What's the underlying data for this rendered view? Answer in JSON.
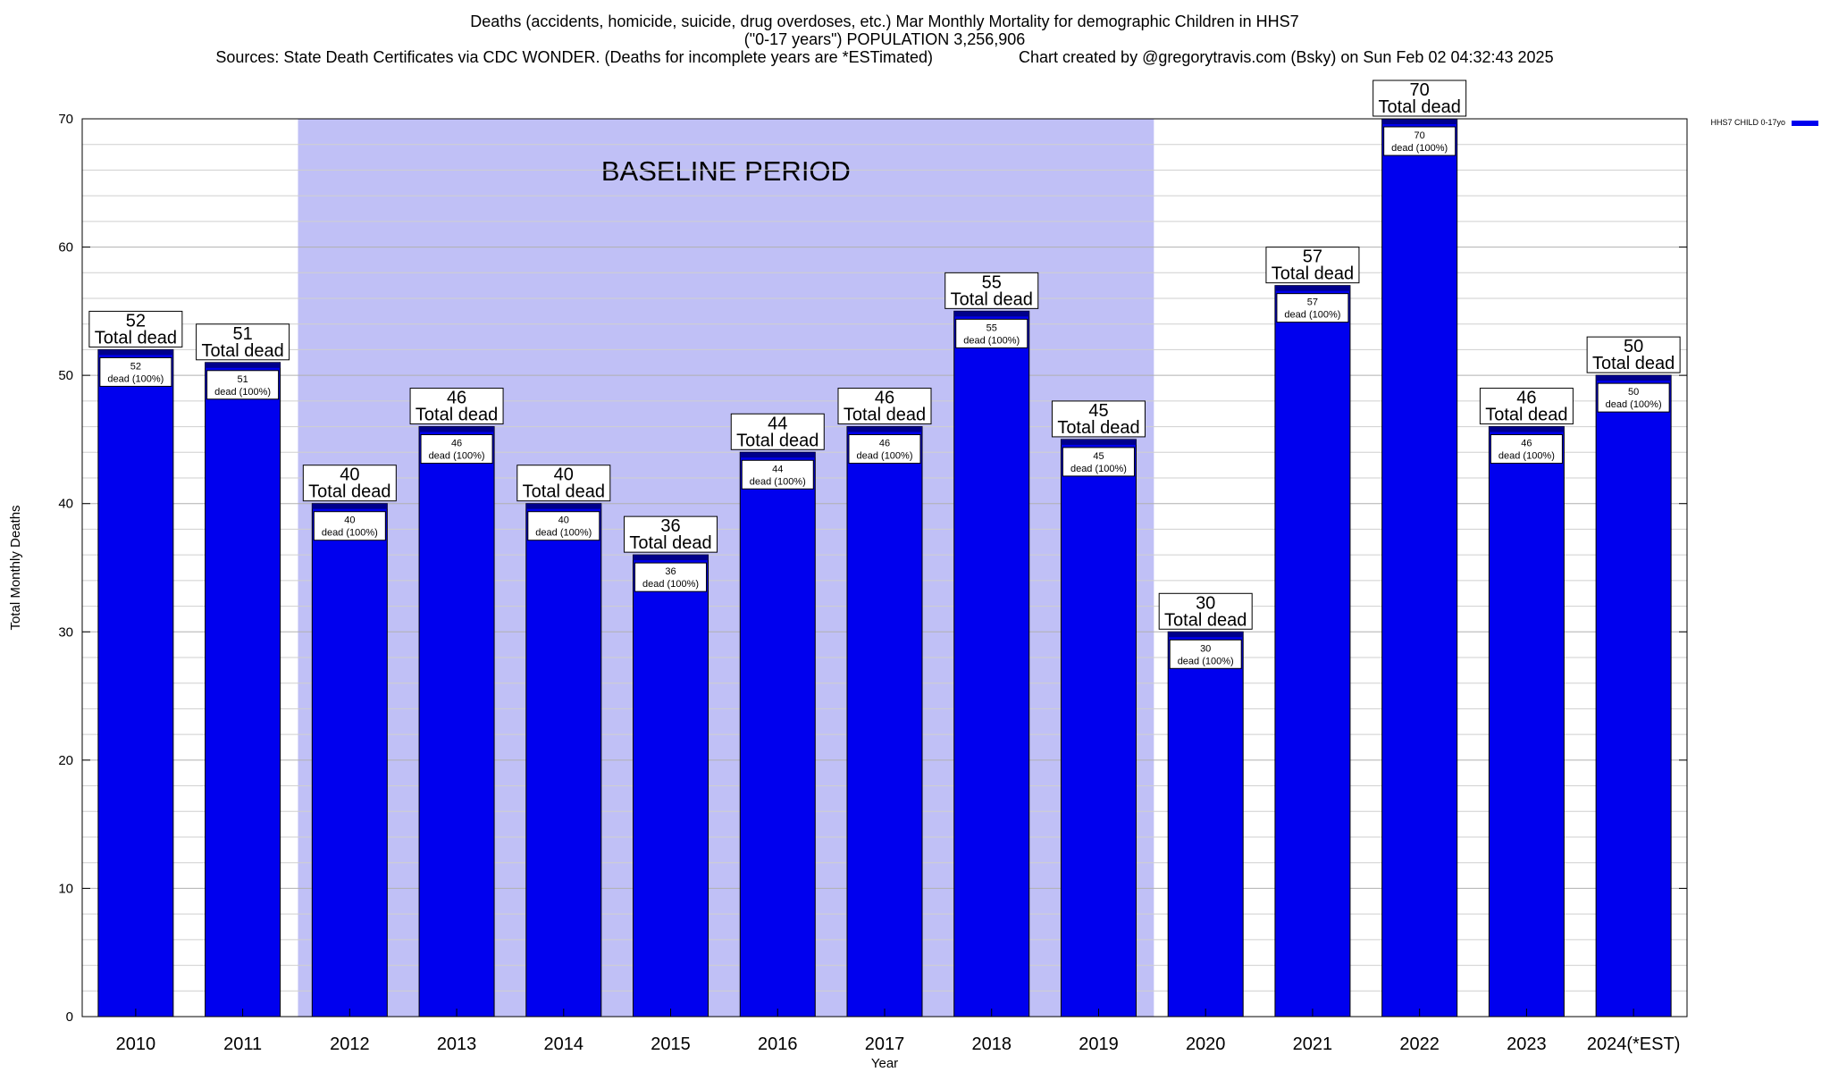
{
  "header": {
    "title_line1": "Deaths (accidents, homicide, suicide, drug overdoses, etc.) Mar Monthly Mortality for demographic Children in HHS7",
    "title_line2": "(\"0-17 years\") POPULATION 3,256,906",
    "sources": "Sources: State Death Certificates via CDC WONDER. (Deaths for incomplete years are *ESTimated)",
    "credit": "Chart created by @gregorytravis.com (Bsky) on Sun Feb 02 04:32:43 2025"
  },
  "chart_data": {
    "type": "bar",
    "categories": [
      "2010",
      "2011",
      "2012",
      "2013",
      "2014",
      "2015",
      "2016",
      "2017",
      "2018",
      "2019",
      "2020",
      "2021",
      "2022",
      "2023",
      "2024(*EST)"
    ],
    "series": [
      {
        "name": "HHS7 CHILD 0-17yo",
        "values": [
          52,
          51,
          40,
          46,
          40,
          36,
          44,
          46,
          55,
          45,
          30,
          57,
          70,
          46,
          50
        ]
      }
    ],
    "xlabel": "Year",
    "ylabel": "Total Monthly Deaths",
    "ylim": [
      0,
      70
    ],
    "yticks": [
      0,
      10,
      20,
      30,
      40,
      50,
      60,
      70
    ],
    "grid": true,
    "legend_position": "top-right",
    "top_label_suffix": "Total dead",
    "inner_label_suffix": "dead (100%)",
    "baseline_period": {
      "label": "BASELINE PERIOD",
      "from": "2012",
      "to": "2019"
    },
    "colors": {
      "bar": "#0000ee",
      "bar_cap": "#00008b",
      "baseline_shade": "#c0c0f6"
    }
  }
}
